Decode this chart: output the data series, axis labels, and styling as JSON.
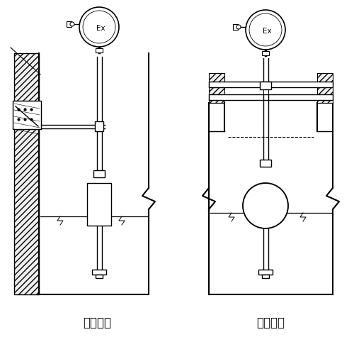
{
  "label_left": "架装固定",
  "label_right": "法兰固定",
  "label_ex": "Ex",
  "bg_color": "#ffffff",
  "line_color": "#000000",
  "fig_width": 5.0,
  "fig_height": 4.75,
  "dpi": 100
}
